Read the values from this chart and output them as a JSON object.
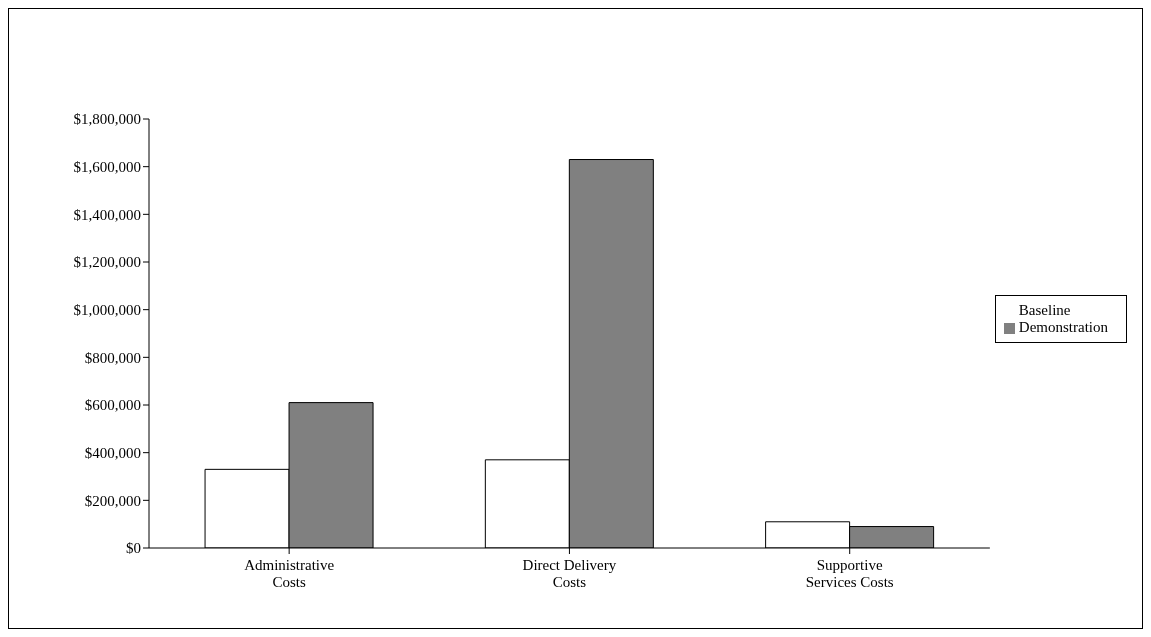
{
  "chart_data": {
    "type": "bar",
    "categories": [
      "Administrative Costs",
      "Direct Delivery Costs",
      "Supportive Services Costs"
    ],
    "series": [
      {
        "name": "Baseline",
        "color": "#ffffff",
        "values": [
          330000,
          370000,
          110000
        ]
      },
      {
        "name": "Demonstration",
        "color": "#808080",
        "values": [
          610000,
          1630000,
          90000
        ]
      }
    ],
    "ylim": [
      0,
      1800000
    ],
    "yticks": [
      {
        "value": 0,
        "label": "$0"
      },
      {
        "value": 200000,
        "label": "$200,000"
      },
      {
        "value": 400000,
        "label": "$400,000"
      },
      {
        "value": 600000,
        "label": "$600,000"
      },
      {
        "value": 800000,
        "label": "$800,000"
      },
      {
        "value": 1000000,
        "label": "$1,000,000"
      },
      {
        "value": 1200000,
        "label": "$1,200,000"
      },
      {
        "value": 1400000,
        "label": "$1,400,000"
      },
      {
        "value": 1600000,
        "label": "$1,600,000"
      },
      {
        "value": 1800000,
        "label": "$1,800,000"
      }
    ],
    "grid": false,
    "legend": "right"
  }
}
